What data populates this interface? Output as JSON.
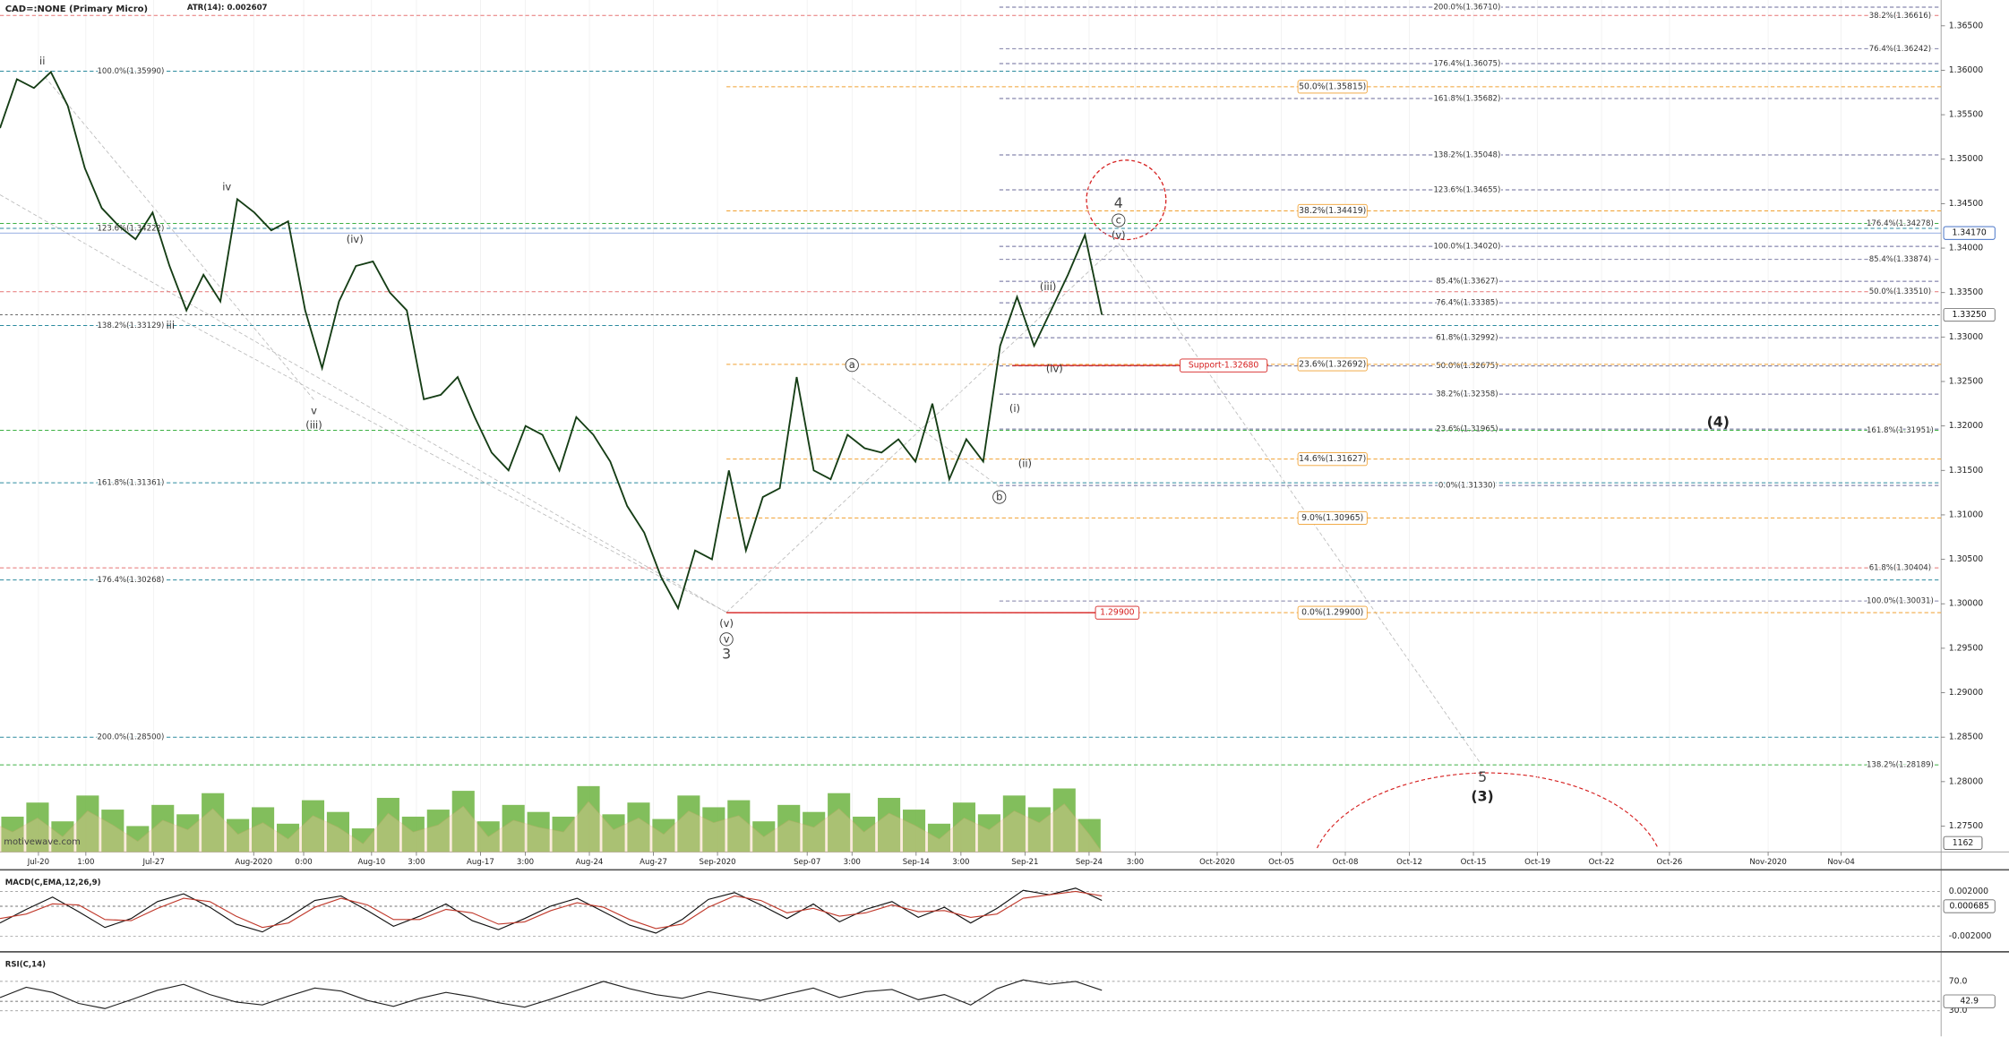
{
  "chart_data": [
    {
      "type": "line",
      "title": "CAD=:NONE (Primary Micro)",
      "subtitle": "ATR(14): 0.002607",
      "watermark": "motivewave.com",
      "color": "#153d15",
      "values": [
        1.3535,
        1.359,
        1.358,
        1.3598,
        1.356,
        1.349,
        1.3445,
        1.3425,
        1.341,
        1.344,
        1.338,
        1.333,
        1.337,
        1.334,
        1.3455,
        1.344,
        1.342,
        1.343,
        1.333,
        1.3265,
        1.334,
        1.338,
        1.3385,
        1.335,
        1.333,
        1.323,
        1.3235,
        1.3255,
        1.321,
        1.317,
        1.315,
        1.32,
        1.319,
        1.315,
        1.321,
        1.319,
        1.316,
        1.311,
        1.308,
        1.303,
        1.2995,
        1.306,
        1.305,
        1.315,
        1.306,
        1.312,
        1.313,
        1.3255,
        1.315,
        1.314,
        1.319,
        1.3175,
        1.317,
        1.3185,
        1.316,
        1.3225,
        1.314,
        1.3185,
        1.316,
        1.329,
        1.3345,
        1.329,
        1.333,
        1.337,
        1.3415,
        1.3325
      ],
      "ylim": [
        1.2721,
        1.3679
      ],
      "yticks": [
        {
          "value": 1.275,
          "label": "1.27500"
        },
        {
          "value": 1.28,
          "label": "1.28000"
        },
        {
          "value": 1.285,
          "label": "1.28500"
        },
        {
          "value": 1.29,
          "label": "1.29000"
        },
        {
          "value": 1.295,
          "label": "1.29500"
        },
        {
          "value": 1.3,
          "label": "1.30000"
        },
        {
          "value": 1.305,
          "label": "1.30500"
        },
        {
          "value": 1.31,
          "label": "1.31000"
        },
        {
          "value": 1.315,
          "label": "1.31500"
        },
        {
          "value": 1.32,
          "label": "1.32000"
        },
        {
          "value": 1.325,
          "label": "1.32500"
        },
        {
          "value": 1.33,
          "label": "1.33000"
        },
        {
          "value": 1.335,
          "label": "1.33500"
        },
        {
          "value": 1.34,
          "label": "1.34000"
        },
        {
          "value": 1.345,
          "label": "1.34500"
        },
        {
          "value": 1.35,
          "label": "1.35000"
        },
        {
          "value": 1.355,
          "label": "1.35500"
        },
        {
          "value": 1.36,
          "label": "1.36000"
        },
        {
          "value": 1.365,
          "label": "1.36500"
        }
      ],
      "x_labels": [
        "Jul-20",
        "1:00",
        "Jul-27",
        "Aug-2020",
        "0:00",
        "Aug-10",
        "3:00",
        "Aug-17",
        "3:00",
        "Aug-24",
        "Aug-27",
        "Sep-2020",
        "Sep-07",
        "3:00",
        "Sep-14",
        "3:00",
        "Sep-21",
        "Sep-24",
        "3:00",
        "Oct-2020",
        "Oct-05",
        "Oct-08",
        "Oct-12",
        "Oct-15",
        "Oct-19",
        "Oct-22",
        "Oct-26",
        "Nov-2020",
        "Nov-04"
      ],
      "levels": [
        {
          "label": "100.0%(1.35990)",
          "value": 1.3599,
          "color": "#2b8a9e"
        },
        {
          "label": "123.6%(1.34222)",
          "value": 1.34222,
          "color": "#2b8a9e"
        },
        {
          "label": "138.2%(1.33129)",
          "value": 1.33129,
          "color": "#2b8a9e"
        },
        {
          "label": "161.8%(1.31361)",
          "value": 1.31361,
          "color": "#2b8a9e"
        },
        {
          "label": "176.4%(1.30268)",
          "value": 1.30268,
          "color": "#2b8a9e"
        },
        {
          "label": "200.0%(1.28500)",
          "value": 1.285,
          "color": "#2b8a9e"
        },
        {
          "label": "200.0%(1.36710)",
          "value": 1.3671,
          "color": "#6a6a9a"
        },
        {
          "label": "176.4%(1.36075)",
          "value": 1.36075,
          "color": "#6a6a9a"
        },
        {
          "label": "161.8%(1.35682)",
          "value": 1.35682,
          "color": "#6a6a9a"
        },
        {
          "label": "138.2%(1.35048)",
          "value": 1.35048,
          "color": "#6a6a9a"
        },
        {
          "label": "123.6%(1.34655)",
          "value": 1.34655,
          "color": "#6a6a9a"
        },
        {
          "label": "100.0%(1.34020)",
          "value": 1.3402,
          "color": "#6a6a9a"
        },
        {
          "label": "85.4%(1.33627)",
          "value": 1.33627,
          "color": "#6a6a9a"
        },
        {
          "label": "76.4%(1.33385)",
          "value": 1.33385,
          "color": "#6a6a9a"
        },
        {
          "label": "61.8%(1.32992)",
          "value": 1.32992,
          "color": "#6a6a9a"
        },
        {
          "label": "50.0%(1.32675)",
          "value": 1.32675,
          "color": "#6a6a9a"
        },
        {
          "label": "38.2%(1.32358)",
          "value": 1.32358,
          "color": "#6a6a9a"
        },
        {
          "label": "23.6%(1.31965)",
          "value": 1.31965,
          "color": "#6a6a9a"
        },
        {
          "label": "0.0%(1.31330)",
          "value": 1.3133,
          "color": "#6a6a9a"
        },
        {
          "label": "50.0%(1.35815)",
          "value": 1.35815,
          "color": "#f0a030"
        },
        {
          "label": "38.2%(1.34419)",
          "value": 1.34419,
          "color": "#f0a030"
        },
        {
          "label": "23.6%(1.32692)",
          "value": 1.32692,
          "color": "#f0a030"
        },
        {
          "label": "14.6%(1.31627)",
          "value": 1.31627,
          "color": "#f0a030"
        },
        {
          "label": "9.0%(1.30965)",
          "value": 1.30965,
          "color": "#f0a030"
        },
        {
          "label": "0.0%(1.29900)",
          "value": 1.299,
          "color": "#f0a030"
        },
        {
          "label": "38.2%(1.36616)",
          "value": 1.36616,
          "color": "#e57373"
        },
        {
          "label": "76.4%(1.36242)",
          "value": 1.36242,
          "color": "#8080a8"
        },
        {
          "label": "176.4%(1.34278)",
          "value": 1.34278,
          "color": "#3cb043"
        },
        {
          "label": "85.4%(1.33874)",
          "value": 1.33874,
          "color": "#8080a8"
        },
        {
          "label": "50.0%(1.33510)",
          "value": 1.3351,
          "color": "#e57373"
        },
        {
          "label": "161.8%(1.31951)",
          "value": 1.31951,
          "color": "#3cb043"
        },
        {
          "label": "61.8%(1.30404)",
          "value": 1.30404,
          "color": "#e57373"
        },
        {
          "label": "100.0%(1.30031)",
          "value": 1.30031,
          "color": "#8080a8"
        },
        {
          "label": "138.2%(1.28189)",
          "value": 1.28189,
          "color": "#3cb043"
        }
      ],
      "supports": [
        {
          "label": "Support-1.32680",
          "value": 1.3268
        },
        {
          "label": "1.29900",
          "value": 1.299
        }
      ],
      "price_tags": [
        {
          "label": "1.34170",
          "value": 1.3417
        },
        {
          "label": "1.33250",
          "value": 1.3325
        }
      ],
      "annotations": [
        "ii",
        "iv",
        "(iv)",
        "iii",
        "v",
        "(iii)",
        "(v)",
        "v",
        "3",
        "a",
        "b",
        "(i)",
        "(ii)",
        "(iii)",
        "(iv)",
        "(v)",
        "c",
        "4",
        "5",
        "(3)",
        "(4)"
      ],
      "volume": {
        "values": [
          1500,
          2100,
          1300,
          2400,
          1800,
          1100,
          2000,
          1600,
          2500,
          1400,
          1900,
          1200,
          2200,
          1700,
          1000,
          2300,
          1500,
          1800,
          2600,
          1300,
          2000,
          1700,
          1500,
          2800,
          1600,
          2100,
          1400,
          2400,
          1900,
          2200,
          1300,
          2000,
          1700,
          2500,
          1500,
          2300,
          1800,
          1200,
          2100,
          1600,
          2400,
          1900,
          2700,
          1400
        ],
        "ylim": [
          0,
          3000
        ],
        "last": 1162,
        "color": "#6cb33f"
      }
    },
    {
      "type": "line",
      "title": "MACD(C,EMA,12,26,9)",
      "series": [
        {
          "color": "#111",
          "values": [
            -0.0008,
            0.0004,
            0.0015,
            0.0002,
            -0.0012,
            -0.0004,
            0.0011,
            0.0018,
            0.0006,
            -0.0009,
            -0.0016,
            -0.0003,
            0.0012,
            0.0016,
            0.0003,
            -0.0011,
            -0.0002,
            0.0009,
            -0.0006,
            -0.0014,
            -0.0004,
            0.0007,
            0.0014,
            0.0002,
            -0.001,
            -0.0017,
            -0.0005,
            0.0013,
            0.0019,
            0.0008,
            -0.0004,
            0.0009,
            -0.0007,
            0.0004,
            0.0011,
            -0.0003,
            0.0006,
            -0.0008,
            0.0005,
            0.0021,
            0.0017,
            0.0023,
            0.0012
          ]
        },
        {
          "color": "#c0392b",
          "values": [
            -0.0004,
            0.0,
            0.0009,
            0.0008,
            -0.0005,
            -0.0006,
            0.0005,
            0.0014,
            0.0011,
            -0.0002,
            -0.0012,
            -0.0008,
            0.0006,
            0.0014,
            0.0008,
            -0.0005,
            -0.0005,
            0.0004,
            0.0001,
            -0.0009,
            -0.0007,
            0.0003,
            0.001,
            0.0006,
            -0.0005,
            -0.0013,
            -0.0009,
            0.0006,
            0.0016,
            0.0012,
            0.0001,
            0.0005,
            -0.0002,
            0.0001,
            0.0008,
            0.0002,
            0.0003,
            -0.0003,
            0.0,
            0.0014,
            0.0017,
            0.002,
            0.0016
          ]
        }
      ],
      "ylim": [
        -0.00314,
        0.0037
      ],
      "yticks": [
        {
          "value": 0.002,
          "label": "0.002000"
        },
        {
          "value": -0.002,
          "label": "-0.002000"
        }
      ],
      "last": 0.000685
    },
    {
      "type": "line",
      "title": "RSI(C,14)",
      "series": [
        {
          "color": "#222",
          "values": [
            48,
            62,
            55,
            40,
            33,
            45,
            58,
            66,
            52,
            42,
            38,
            50,
            61,
            57,
            44,
            36,
            47,
            55,
            49,
            41,
            35,
            46,
            58,
            70,
            60,
            52,
            47,
            56,
            50,
            44,
            53,
            61,
            48,
            56,
            59,
            45,
            52,
            38,
            60,
            72,
            66,
            70,
            58
          ]
        }
      ],
      "ylim": [
        -3,
        105
      ],
      "yticks": [
        {
          "value": 70,
          "label": "70.0"
        },
        {
          "value": 30,
          "label": "30.0"
        }
      ],
      "last": 42.9
    }
  ]
}
